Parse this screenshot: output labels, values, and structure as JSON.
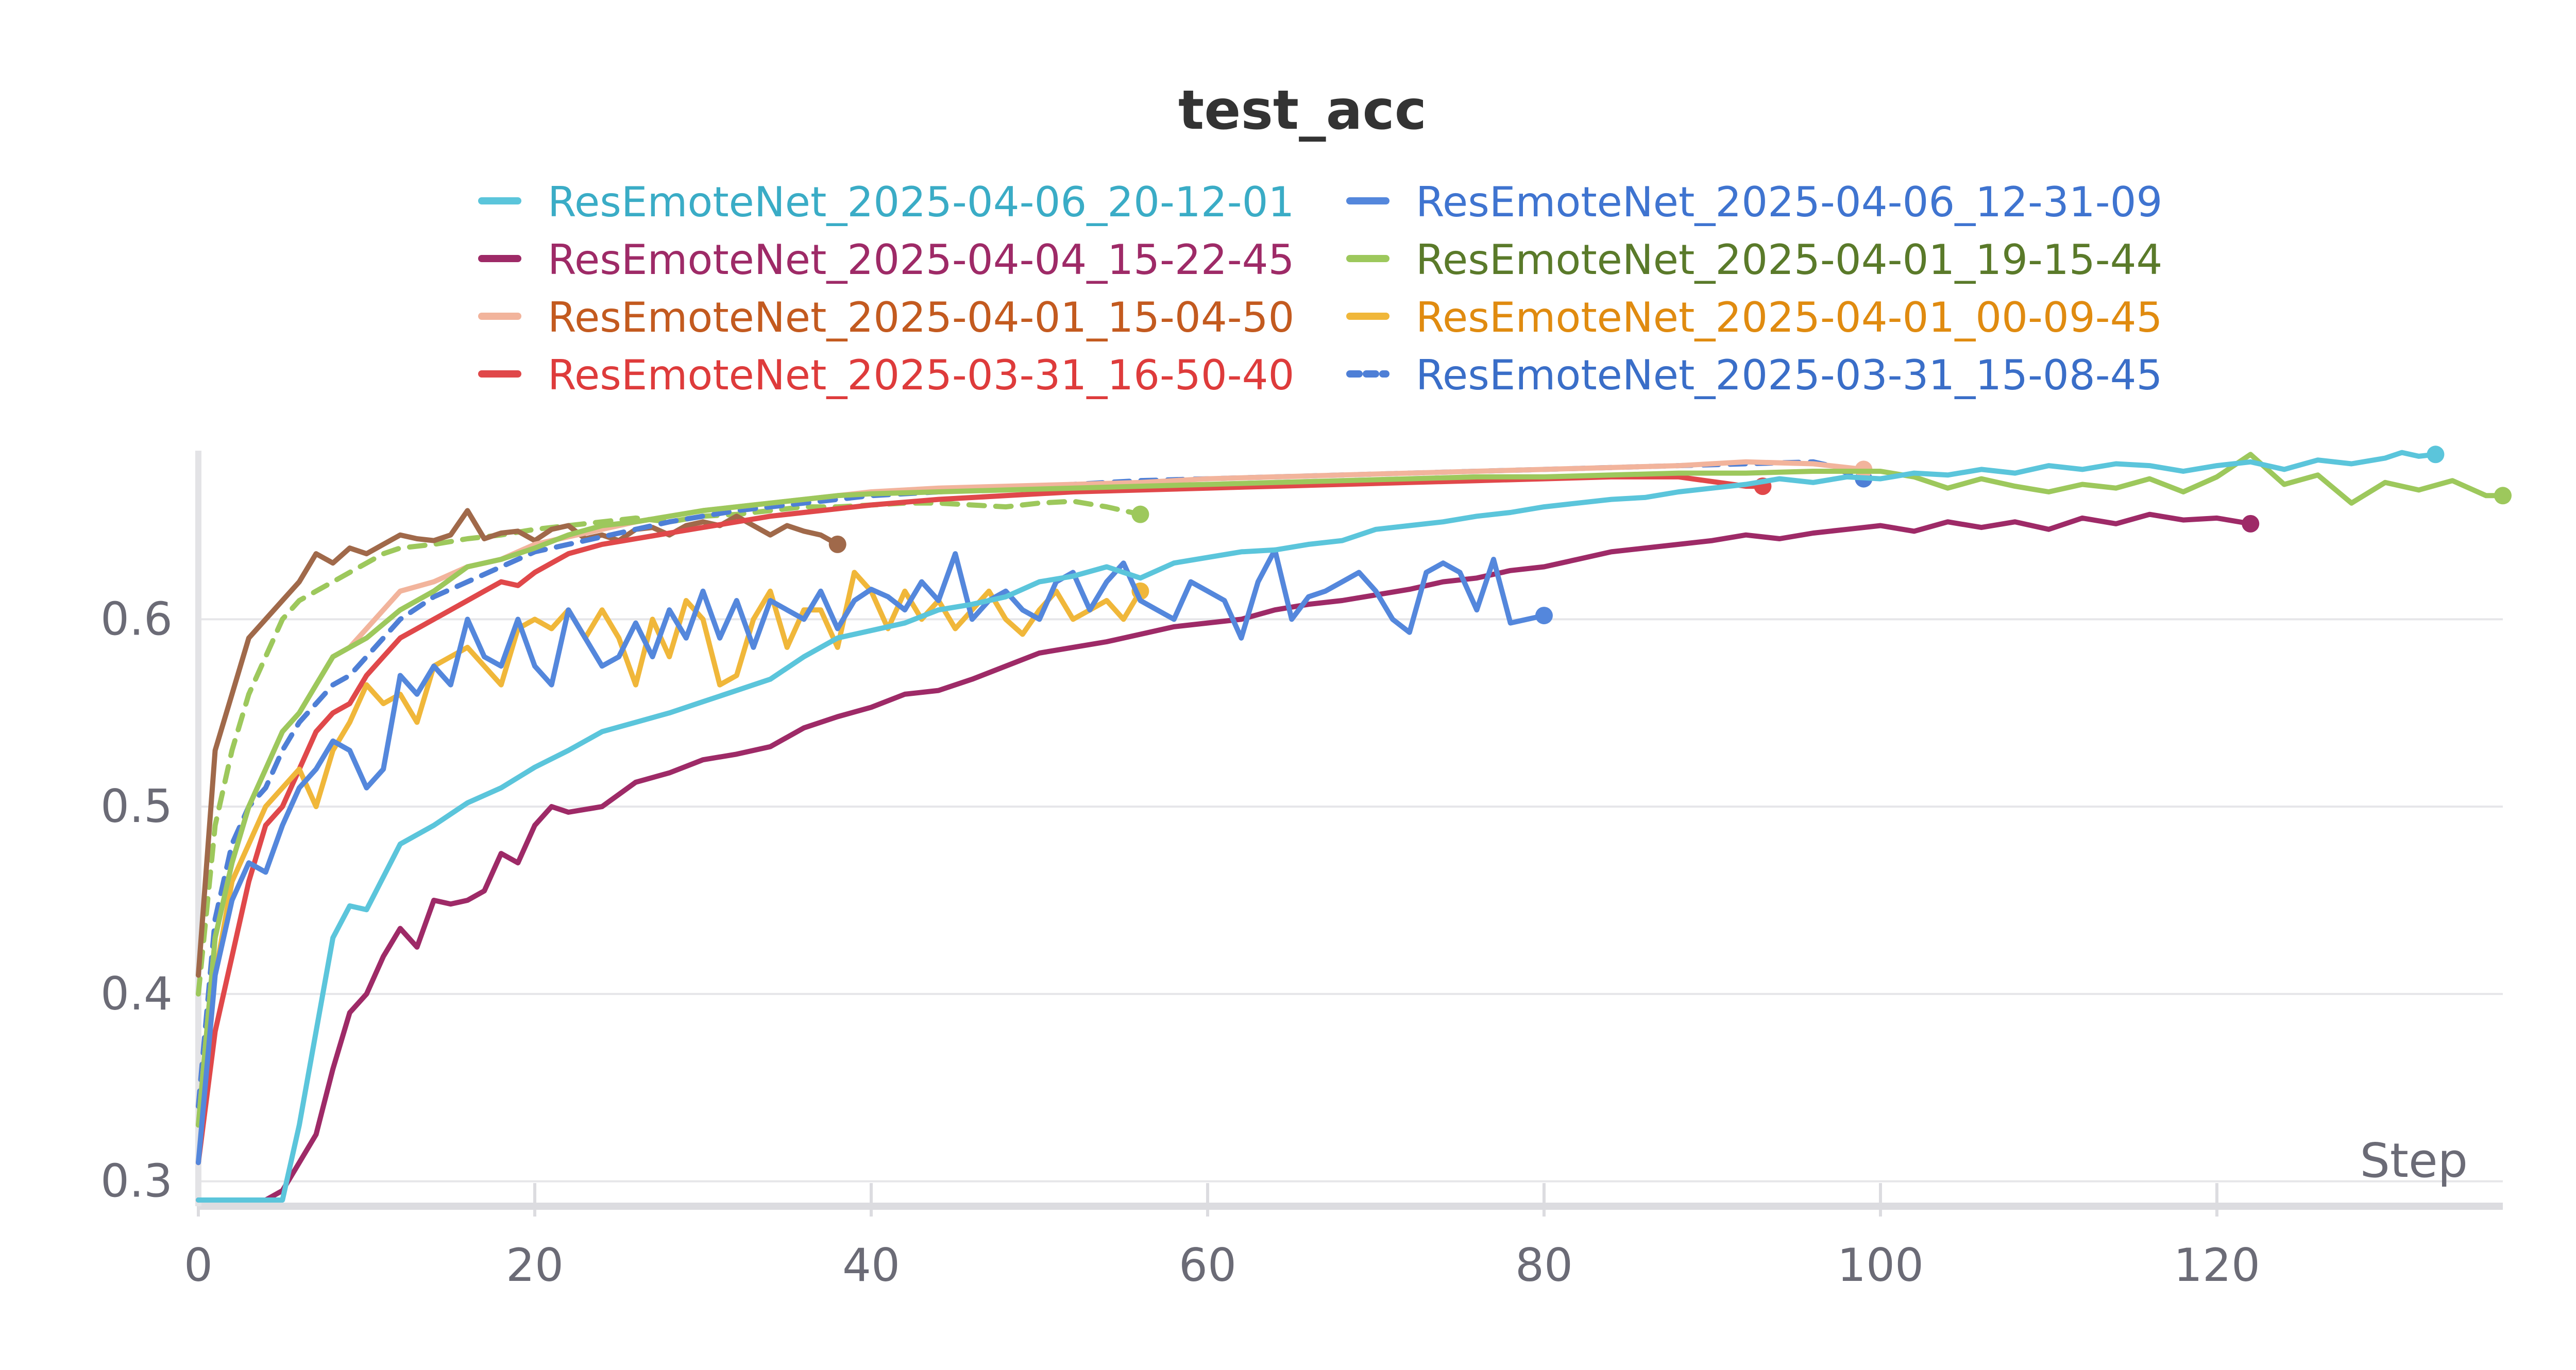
{
  "chart_data": {
    "type": "line",
    "title": "test_acc",
    "xlabel": "Step",
    "ylabel": "",
    "xlim": [
      0,
      137
    ],
    "ylim": [
      0.29,
      0.69
    ],
    "x_ticks": [
      "0",
      "20",
      "40",
      "60",
      "80",
      "100",
      "120"
    ],
    "x_tick_values": [
      0,
      20,
      40,
      60,
      80,
      100,
      120
    ],
    "y_ticks": [
      "0.3",
      "0.4",
      "0.5",
      "0.6"
    ],
    "y_tick_values": [
      0.3,
      0.4,
      0.5,
      0.6
    ],
    "grid": true,
    "legend_position": "top",
    "series": [
      {
        "name": "ResEmoteNet_2025-04-06_20-12-01",
        "color": "#5bc5db",
        "label_color": "#3aacc6",
        "dashed": false,
        "x": [
          0,
          1,
          2,
          3,
          4,
          5,
          6,
          7,
          8,
          9,
          10,
          12,
          14,
          16,
          18,
          20,
          22,
          24,
          26,
          28,
          30,
          32,
          34,
          36,
          38,
          40,
          42,
          44,
          46,
          48,
          50,
          52,
          54,
          56,
          58,
          60,
          62,
          64,
          66,
          68,
          70,
          72,
          74,
          76,
          78,
          80,
          82,
          84,
          86,
          88,
          90,
          92,
          94,
          96,
          98,
          100,
          102,
          104,
          106,
          108,
          110,
          112,
          114,
          116,
          118,
          120,
          122,
          124,
          126,
          128,
          130,
          131,
          132,
          133
        ],
        "y": [
          0.29,
          0.29,
          0.29,
          0.29,
          0.29,
          0.29,
          0.33,
          0.38,
          0.43,
          0.447,
          0.445,
          0.48,
          0.49,
          0.502,
          0.51,
          0.521,
          0.53,
          0.54,
          0.545,
          0.55,
          0.556,
          0.562,
          0.568,
          0.58,
          0.59,
          0.594,
          0.598,
          0.605,
          0.608,
          0.612,
          0.62,
          0.623,
          0.628,
          0.622,
          0.63,
          0.633,
          0.636,
          0.637,
          0.64,
          0.642,
          0.648,
          0.65,
          0.652,
          0.655,
          0.657,
          0.66,
          0.662,
          0.664,
          0.665,
          0.668,
          0.67,
          0.672,
          0.675,
          0.673,
          0.676,
          0.675,
          0.678,
          0.677,
          0.68,
          0.678,
          0.682,
          0.68,
          0.683,
          0.682,
          0.679,
          0.682,
          0.684,
          0.68,
          0.685,
          0.683,
          0.686,
          0.689,
          0.687,
          0.688
        ]
      },
      {
        "name": "ResEmoteNet_2025-04-06_12-31-09",
        "color": "#5487dc",
        "label_color": "#3f74d0",
        "dashed": false,
        "x": [
          0,
          1,
          2,
          3,
          4,
          5,
          6,
          7,
          8,
          9,
          10,
          11,
          12,
          13,
          14,
          15,
          16,
          17,
          18,
          19,
          20,
          21,
          22,
          23,
          24,
          25,
          26,
          27,
          28,
          29,
          30,
          31,
          32,
          33,
          34,
          35,
          36,
          37,
          38,
          39,
          40,
          41,
          42,
          43,
          44,
          45,
          46,
          47,
          48,
          49,
          50,
          51,
          52,
          53,
          54,
          55,
          56,
          57,
          58,
          59,
          60,
          61,
          62,
          63,
          64,
          65,
          66,
          67,
          68,
          69,
          70,
          71,
          72,
          73,
          74,
          75,
          76,
          77,
          78,
          79,
          80
        ],
        "y": [
          0.31,
          0.41,
          0.45,
          0.47,
          0.465,
          0.49,
          0.51,
          0.52,
          0.535,
          0.53,
          0.51,
          0.52,
          0.57,
          0.56,
          0.575,
          0.565,
          0.6,
          0.58,
          0.575,
          0.6,
          0.575,
          0.565,
          0.605,
          0.59,
          0.575,
          0.58,
          0.598,
          0.58,
          0.605,
          0.59,
          0.615,
          0.59,
          0.61,
          0.585,
          0.61,
          0.605,
          0.6,
          0.615,
          0.595,
          0.61,
          0.616,
          0.612,
          0.605,
          0.62,
          0.61,
          0.635,
          0.6,
          0.61,
          0.615,
          0.605,
          0.6,
          0.62,
          0.625,
          0.605,
          0.62,
          0.63,
          0.61,
          0.605,
          0.6,
          0.62,
          0.615,
          0.61,
          0.59,
          0.62,
          0.637,
          0.6,
          0.612,
          0.615,
          0.62,
          0.625,
          0.615,
          0.6,
          0.593,
          0.625,
          0.63,
          0.625,
          0.605,
          0.632,
          0.598,
          0.6,
          0.602
        ]
      },
      {
        "name": "ResEmoteNet_2025-04-04_15-22-45",
        "color": "#9e2a67",
        "label_color": "#9e2a67",
        "dashed": false,
        "x": [
          0,
          1,
          2,
          3,
          4,
          5,
          6,
          7,
          8,
          9,
          10,
          11,
          12,
          13,
          14,
          15,
          16,
          17,
          18,
          19,
          20,
          21,
          22,
          24,
          26,
          28,
          30,
          32,
          34,
          36,
          38,
          40,
          42,
          44,
          46,
          48,
          50,
          52,
          54,
          56,
          58,
          60,
          62,
          64,
          66,
          68,
          70,
          72,
          74,
          76,
          78,
          80,
          82,
          84,
          86,
          88,
          90,
          92,
          94,
          96,
          98,
          100,
          102,
          104,
          106,
          108,
          110,
          112,
          114,
          116,
          118,
          120,
          122
        ],
        "y": [
          0.29,
          0.29,
          0.29,
          0.29,
          0.29,
          0.295,
          0.31,
          0.325,
          0.36,
          0.39,
          0.4,
          0.42,
          0.435,
          0.425,
          0.45,
          0.448,
          0.45,
          0.455,
          0.475,
          0.47,
          0.49,
          0.5,
          0.497,
          0.5,
          0.513,
          0.518,
          0.525,
          0.528,
          0.532,
          0.542,
          0.548,
          0.553,
          0.56,
          0.562,
          0.568,
          0.575,
          0.582,
          0.585,
          0.588,
          0.592,
          0.596,
          0.598,
          0.6,
          0.605,
          0.608,
          0.61,
          0.613,
          0.616,
          0.62,
          0.622,
          0.626,
          0.628,
          0.632,
          0.636,
          0.638,
          0.64,
          0.642,
          0.645,
          0.643,
          0.646,
          0.648,
          0.65,
          0.647,
          0.652,
          0.649,
          0.652,
          0.648,
          0.654,
          0.651,
          0.656,
          0.653,
          0.654,
          0.651
        ]
      },
      {
        "name": "ResEmoteNet_2025-04-01_19-15-44",
        "color": "#9dc85c",
        "label_color": "#5a7a2a",
        "dashed": false,
        "x": [
          0,
          1,
          2,
          3,
          4,
          5,
          6,
          7,
          8,
          9,
          10,
          12,
          14,
          16,
          18,
          20,
          22,
          24,
          26,
          28,
          30,
          32,
          34,
          36,
          38,
          40,
          44,
          48,
          52,
          56,
          60,
          64,
          68,
          72,
          76,
          80,
          84,
          88,
          92,
          96,
          100,
          102,
          104,
          106,
          108,
          110,
          112,
          114,
          116,
          118,
          120,
          122,
          124,
          126,
          128,
          130,
          132,
          134,
          136,
          137
        ],
        "y": [
          0.33,
          0.43,
          0.47,
          0.5,
          0.52,
          0.54,
          0.55,
          0.565,
          0.58,
          0.585,
          0.59,
          0.605,
          0.615,
          0.628,
          0.632,
          0.638,
          0.645,
          0.65,
          0.652,
          0.655,
          0.658,
          0.66,
          0.662,
          0.664,
          0.666,
          0.667,
          0.668,
          0.669,
          0.67,
          0.671,
          0.672,
          0.673,
          0.674,
          0.675,
          0.676,
          0.676,
          0.677,
          0.678,
          0.678,
          0.679,
          0.679,
          0.676,
          0.67,
          0.675,
          0.671,
          0.668,
          0.672,
          0.67,
          0.675,
          0.668,
          0.676,
          0.688,
          0.672,
          0.677,
          0.662,
          0.673,
          0.669,
          0.674,
          0.666,
          0.666
        ]
      },
      {
        "name": "ResEmoteNet_2025-04-01_15-04-50",
        "color": "#f2b49c",
        "label_color": "#c35a1f",
        "dashed": false,
        "x": [
          0,
          1,
          2,
          3,
          4,
          5,
          6,
          7,
          8,
          9,
          10,
          12,
          14,
          16,
          18,
          20,
          22,
          24,
          26,
          28,
          30,
          32,
          34,
          36,
          38,
          40,
          44,
          48,
          52,
          56,
          60,
          64,
          68,
          72,
          76,
          80,
          84,
          88,
          92,
          96,
          99
        ],
        "y": [
          0.33,
          0.43,
          0.47,
          0.5,
          0.52,
          0.54,
          0.55,
          0.565,
          0.58,
          0.585,
          0.595,
          0.615,
          0.62,
          0.628,
          0.632,
          0.64,
          0.644,
          0.648,
          0.652,
          0.655,
          0.658,
          0.66,
          0.662,
          0.664,
          0.666,
          0.668,
          0.67,
          0.671,
          0.672,
          0.673,
          0.675,
          0.676,
          0.677,
          0.678,
          0.679,
          0.68,
          0.681,
          0.682,
          0.684,
          0.683,
          0.68
        ]
      },
      {
        "name": "ResEmoteNet_2025-04-01_00-09-45",
        "color": "#f0b73a",
        "label_color": "#e08b10",
        "dashed": false,
        "x": [
          0,
          1,
          2,
          3,
          4,
          5,
          6,
          7,
          8,
          9,
          10,
          11,
          12,
          13,
          14,
          15,
          16,
          17,
          18,
          19,
          20,
          21,
          22,
          23,
          24,
          25,
          26,
          27,
          28,
          29,
          30,
          31,
          32,
          33,
          34,
          35,
          36,
          37,
          38,
          39,
          40,
          41,
          42,
          43,
          44,
          45,
          46,
          47,
          48,
          49,
          50,
          51,
          52,
          53,
          54,
          55,
          56
        ],
        "y": [
          0.33,
          0.41,
          0.46,
          0.48,
          0.5,
          0.51,
          0.52,
          0.5,
          0.53,
          0.545,
          0.565,
          0.555,
          0.56,
          0.545,
          0.575,
          0.58,
          0.585,
          0.575,
          0.565,
          0.595,
          0.6,
          0.595,
          0.605,
          0.59,
          0.605,
          0.59,
          0.565,
          0.6,
          0.58,
          0.61,
          0.6,
          0.565,
          0.57,
          0.6,
          0.615,
          0.585,
          0.605,
          0.605,
          0.585,
          0.625,
          0.615,
          0.595,
          0.615,
          0.6,
          0.61,
          0.595,
          0.605,
          0.615,
          0.6,
          0.592,
          0.605,
          0.615,
          0.6,
          0.605,
          0.61,
          0.6,
          0.615
        ]
      },
      {
        "name": "ResEmoteNet_2025-03-31_16-50-40",
        "color": "#e0484a",
        "label_color": "#de3b3b",
        "dashed": false,
        "x": [
          0,
          1,
          2,
          3,
          4,
          5,
          6,
          7,
          8,
          9,
          10,
          11,
          12,
          13,
          14,
          15,
          16,
          17,
          18,
          19,
          20,
          21,
          22,
          24,
          26,
          28,
          30,
          32,
          34,
          36,
          38,
          40,
          44,
          48,
          52,
          56,
          60,
          64,
          68,
          72,
          76,
          80,
          84,
          88,
          92,
          93
        ],
        "y": [
          0.31,
          0.38,
          0.42,
          0.46,
          0.49,
          0.5,
          0.52,
          0.54,
          0.55,
          0.555,
          0.57,
          0.58,
          0.59,
          0.595,
          0.6,
          0.605,
          0.61,
          0.615,
          0.62,
          0.618,
          0.625,
          0.63,
          0.635,
          0.64,
          0.643,
          0.646,
          0.649,
          0.652,
          0.655,
          0.657,
          0.659,
          0.661,
          0.664,
          0.666,
          0.668,
          0.669,
          0.67,
          0.671,
          0.672,
          0.673,
          0.674,
          0.675,
          0.676,
          0.676,
          0.671,
          0.671
        ]
      },
      {
        "name": "ResEmoteNet_2025-03-31_15-08-45",
        "color": "#4e7fd6",
        "label_color": "#3a6ec8",
        "dashed": true,
        "x": [
          0,
          1,
          2,
          3,
          4,
          5,
          6,
          7,
          8,
          9,
          10,
          12,
          14,
          16,
          18,
          20,
          22,
          24,
          26,
          28,
          30,
          32,
          34,
          36,
          38,
          40,
          44,
          48,
          52,
          56,
          60,
          64,
          68,
          72,
          76,
          80,
          84,
          88,
          92,
          96,
          97,
          98,
          99
        ],
        "y": [
          0.34,
          0.44,
          0.48,
          0.5,
          0.51,
          0.53,
          0.545,
          0.555,
          0.565,
          0.57,
          0.58,
          0.6,
          0.612,
          0.62,
          0.628,
          0.636,
          0.64,
          0.644,
          0.648,
          0.652,
          0.655,
          0.658,
          0.66,
          0.662,
          0.664,
          0.666,
          0.668,
          0.67,
          0.672,
          0.674,
          0.675,
          0.676,
          0.677,
          0.678,
          0.679,
          0.68,
          0.681,
          0.682,
          0.683,
          0.684,
          0.682,
          0.678,
          0.675
        ]
      },
      {
        "name": "",
        "color": "#a0694a",
        "label_color": "#a0694a",
        "dashed": false,
        "x": [
          0,
          1,
          2,
          3,
          4,
          5,
          6,
          7,
          8,
          9,
          10,
          11,
          12,
          13,
          14,
          15,
          16,
          17,
          18,
          19,
          20,
          21,
          22,
          23,
          24,
          25,
          26,
          27,
          28,
          29,
          30,
          31,
          32,
          33,
          34,
          35,
          36,
          37,
          38
        ],
        "y": [
          0.41,
          0.53,
          0.56,
          0.59,
          0.6,
          0.61,
          0.62,
          0.635,
          0.63,
          0.638,
          0.635,
          0.64,
          0.645,
          0.643,
          0.642,
          0.645,
          0.658,
          0.643,
          0.646,
          0.647,
          0.642,
          0.648,
          0.65,
          0.643,
          0.645,
          0.642,
          0.648,
          0.649,
          0.645,
          0.65,
          0.652,
          0.65,
          0.655,
          0.65,
          0.645,
          0.65,
          0.647,
          0.645,
          0.64
        ]
      },
      {
        "name": "",
        "color": "#9dc85c",
        "label_color": "#5a7a2a",
        "dashed": true,
        "x": [
          0,
          1,
          2,
          3,
          4,
          5,
          6,
          7,
          8,
          9,
          10,
          11,
          12,
          14,
          16,
          18,
          20,
          22,
          24,
          26,
          28,
          30,
          32,
          34,
          36,
          38,
          40,
          42,
          44,
          46,
          48,
          50,
          52,
          54,
          56
        ],
        "y": [
          0.4,
          0.49,
          0.53,
          0.56,
          0.58,
          0.6,
          0.61,
          0.615,
          0.62,
          0.625,
          0.63,
          0.635,
          0.638,
          0.64,
          0.643,
          0.645,
          0.648,
          0.65,
          0.652,
          0.654,
          0.652,
          0.655,
          0.656,
          0.658,
          0.66,
          0.66,
          0.661,
          0.662,
          0.662,
          0.661,
          0.66,
          0.662,
          0.663,
          0.66,
          0.656
        ]
      }
    ]
  }
}
